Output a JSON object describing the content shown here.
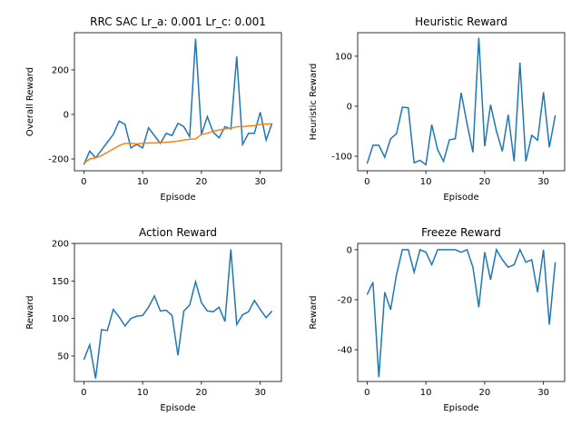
{
  "chart_data": [
    {
      "type": "line",
      "title": "RRC SAC Lr_a: 0.001 Lr_c: 0.001",
      "xlabel": "Episode",
      "ylabel": "Overall Reward",
      "x": [
        0,
        1,
        2,
        3,
        4,
        5,
        6,
        7,
        8,
        9,
        10,
        11,
        12,
        13,
        14,
        15,
        16,
        17,
        18,
        19,
        20,
        21,
        22,
        23,
        24,
        25,
        26,
        27,
        28,
        29,
        30,
        31,
        32
      ],
      "series": [
        {
          "color": "#1f77b4",
          "values": [
            -225,
            -165,
            -195,
            -160,
            -125,
            -90,
            -30,
            -45,
            -150,
            -135,
            -150,
            -60,
            -95,
            -130,
            -85,
            -95,
            -40,
            -55,
            -100,
            340,
            -90,
            -10,
            -80,
            -105,
            -55,
            -65,
            260,
            -135,
            -85,
            -85,
            10,
            -115,
            -40
          ]
        },
        {
          "color": "#ff7f0e",
          "values": [
            -220,
            -200,
            -195,
            -185,
            -170,
            -155,
            -140,
            -130,
            -130,
            -132,
            -130,
            -128,
            -128,
            -126,
            -125,
            -123,
            -120,
            -115,
            -112,
            -110,
            -90,
            -85,
            -75,
            -70,
            -65,
            -62,
            -55,
            -55,
            -52,
            -50,
            -45,
            -43,
            -42
          ]
        }
      ],
      "xlim": [
        -1.6,
        33.6
      ],
      "xticks": [
        0,
        10,
        20,
        30
      ],
      "ylim": [
        -253,
        367
      ],
      "yticks": [
        -200,
        0,
        200
      ]
    },
    {
      "type": "line",
      "title": "Heuristic Reward",
      "xlabel": "Episode",
      "ylabel": "Heuristic Reward",
      "x": [
        0,
        1,
        2,
        3,
        4,
        5,
        6,
        7,
        8,
        9,
        10,
        11,
        12,
        13,
        14,
        15,
        16,
        17,
        18,
        19,
        20,
        21,
        22,
        23,
        24,
        25,
        26,
        27,
        28,
        29,
        30,
        31,
        32
      ],
      "series": [
        {
          "color": "#1f77b4",
          "values": [
            -115,
            -78,
            -78,
            -102,
            -65,
            -55,
            -2,
            -3,
            -113,
            -108,
            -117,
            -37,
            -87,
            -110,
            -67,
            -65,
            27,
            -35,
            -92,
            137,
            -80,
            3,
            -50,
            -90,
            -17,
            -110,
            87,
            -110,
            -58,
            -68,
            28,
            -82,
            -18
          ]
        }
      ],
      "xlim": [
        -1.6,
        33.6
      ],
      "xticks": [
        0,
        10,
        20,
        30
      ],
      "ylim": [
        -129,
        147
      ],
      "yticks": [
        -100,
        0,
        100
      ]
    },
    {
      "type": "line",
      "title": "Action Reward",
      "xlabel": "Episode",
      "ylabel": "Reward",
      "x": [
        0,
        1,
        2,
        3,
        4,
        5,
        6,
        7,
        8,
        9,
        10,
        11,
        12,
        13,
        14,
        15,
        16,
        17,
        18,
        19,
        20,
        21,
        22,
        23,
        24,
        25,
        26,
        27,
        28,
        29,
        30,
        31,
        32
      ],
      "series": [
        {
          "color": "#1f77b4",
          "values": [
            45,
            65,
            20,
            85,
            84,
            112,
            102,
            90,
            100,
            103,
            104,
            115,
            130,
            110,
            111,
            104,
            51,
            110,
            118,
            149,
            121,
            110,
            109,
            115,
            96,
            192,
            92,
            105,
            109,
            124,
            112,
            101,
            110
          ]
        }
      ],
      "xlim": [
        -1.6,
        33.6
      ],
      "xticks": [
        0,
        10,
        20,
        30
      ],
      "ylim": [
        16,
        200
      ],
      "yticks": [
        50,
        100,
        150,
        200
      ]
    },
    {
      "type": "line",
      "title": "Freeze Reward",
      "xlabel": "Episode",
      "ylabel": "Reward",
      "x": [
        0,
        1,
        2,
        3,
        4,
        5,
        6,
        7,
        8,
        9,
        10,
        11,
        12,
        13,
        14,
        15,
        16,
        17,
        18,
        19,
        20,
        21,
        22,
        23,
        24,
        25,
        26,
        27,
        28,
        29,
        30,
        31,
        32
      ],
      "series": [
        {
          "color": "#1f77b4",
          "values": [
            -18,
            -13,
            -51,
            -17,
            -24,
            -10,
            0,
            0,
            -9,
            0,
            -1,
            -6,
            0,
            0,
            0,
            0,
            -1,
            0,
            -7,
            -23,
            -1,
            -12,
            0,
            -4,
            -7,
            -6,
            0,
            -5,
            -4,
            -17,
            0,
            -30,
            -5
          ]
        }
      ],
      "xlim": [
        -1.6,
        33.6
      ],
      "xticks": [
        0,
        10,
        20,
        30
      ],
      "ylim": [
        -52.7,
        2.5
      ],
      "yticks": [
        -40,
        -20,
        0
      ]
    }
  ]
}
